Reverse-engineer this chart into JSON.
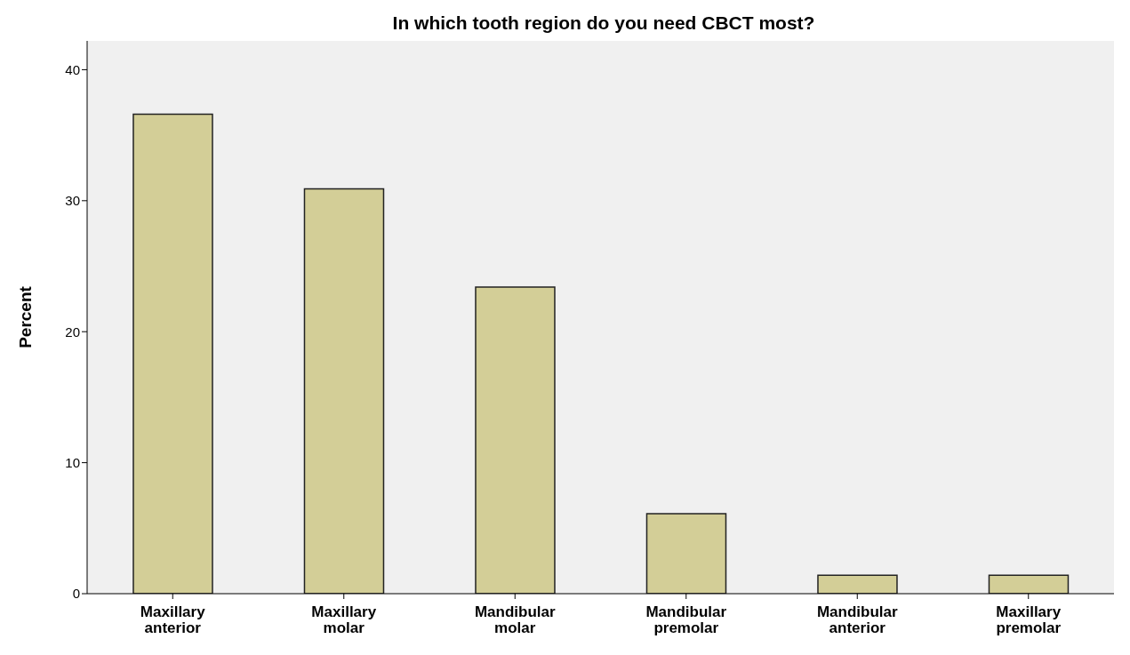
{
  "chart_data": {
    "type": "bar",
    "title": "In which tooth region do you need CBCT most?",
    "ylabel": "Percent",
    "categories": [
      "Maxillary anterior",
      "Maxillary molar",
      "Mandibular molar",
      "Mandibular premolar",
      "Mandibular anterior",
      "Maxillary premolar"
    ],
    "values": [
      36.6,
      30.9,
      23.4,
      6.1,
      1.4,
      1.4
    ],
    "color": "#d3ce97",
    "ylim": [
      0,
      42.2
    ],
    "yticks": [
      0,
      10,
      20,
      30,
      40
    ],
    "grid": false
  }
}
